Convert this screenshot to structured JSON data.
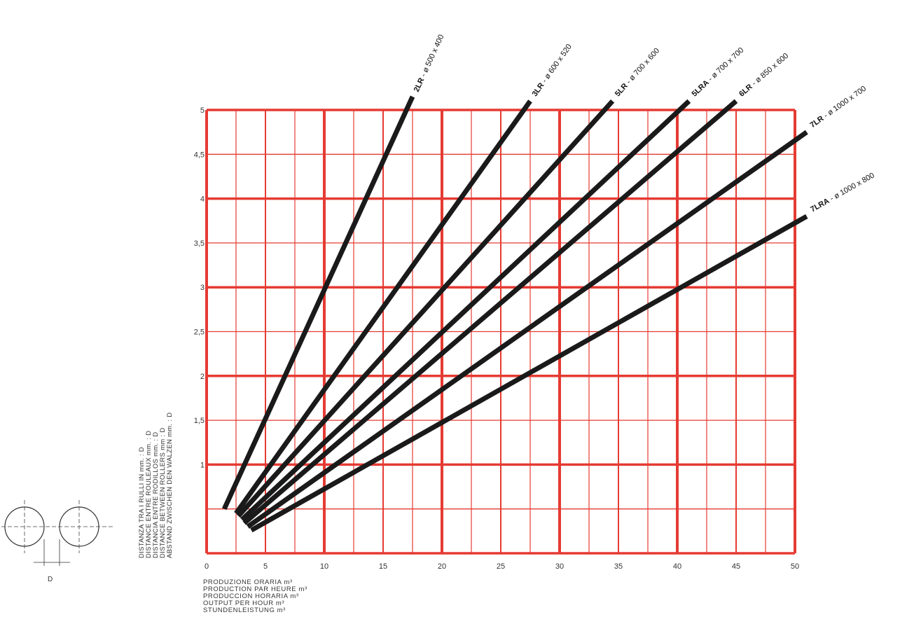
{
  "chart_data": {
    "type": "line",
    "x_ticks": [
      "0",
      "5",
      "10",
      "15",
      "20",
      "25",
      "30",
      "35",
      "40",
      "45",
      "50"
    ],
    "y_ticks": [
      "1",
      "1,5",
      "2",
      "2,5",
      "3",
      "3,5",
      "4",
      "4,5",
      "5"
    ],
    "xlim": [
      0,
      50
    ],
    "ylim": [
      0,
      5
    ],
    "grid": true,
    "grid_color": "#e53b33",
    "line_color": "#1a1a1a",
    "ylabel_lines": [
      "DISTANZA TRA I RULLI IN mm. : D",
      "DISTANCE ENTRE ROULEAUX mm. : D",
      "DISTANCIA ENTRE RODILLOS mm. : D",
      "DISTANCE BETWEEN ROLLERS mm : D",
      "ABSTAND ZWISCHEN DEN WALZEN mm. : D"
    ],
    "xlabel_lines": [
      "PRODUZIONE ORARIA m³",
      "PRODUCTION PAR HEURE m³",
      "PRODUCCION HORARIA m³",
      "OUTPUT PER HOUR m³",
      "STUNDENLEISTUNG m³"
    ],
    "diagram_label": "D",
    "series": [
      {
        "name": "2LR - ø 500 x 400",
        "code": "2LR",
        "spec": " - ø 500 x 400",
        "x": [
          1.5,
          17.5
        ],
        "y": [
          0.5,
          5.15
        ]
      },
      {
        "name": "3LR - ø 600 x 520",
        "code": "3LR",
        "spec": " - ø 600 x 520",
        "x": [
          2.5,
          27.5
        ],
        "y": [
          0.45,
          5.1
        ]
      },
      {
        "name": "5LR - ø 700 x 600",
        "code": "5LR",
        "spec": " - ø 700 x 600",
        "x": [
          2.7,
          34.5
        ],
        "y": [
          0.42,
          5.1
        ]
      },
      {
        "name": "5LRA - ø 700 x 700",
        "code": "5LRA",
        "spec": " - ø 700 x 700",
        "x": [
          3.0,
          41.0
        ],
        "y": [
          0.38,
          5.1
        ]
      },
      {
        "name": "6LR - ø 850 x 600",
        "code": "6LR",
        "spec": " - ø 850 x 600",
        "x": [
          3.2,
          45.0
        ],
        "y": [
          0.34,
          5.1
        ]
      },
      {
        "name": "7LR - ø 1000 x 700",
        "code": "7LR",
        "spec": " - ø 1000 x 700",
        "x": [
          3.5,
          51.0
        ],
        "y": [
          0.3,
          4.75
        ]
      },
      {
        "name": "7LRA - ø 1000 x 800",
        "code": "7LRA",
        "spec": " - ø 1000 x 800",
        "x": [
          3.8,
          51.0
        ],
        "y": [
          0.26,
          3.8
        ]
      }
    ]
  }
}
